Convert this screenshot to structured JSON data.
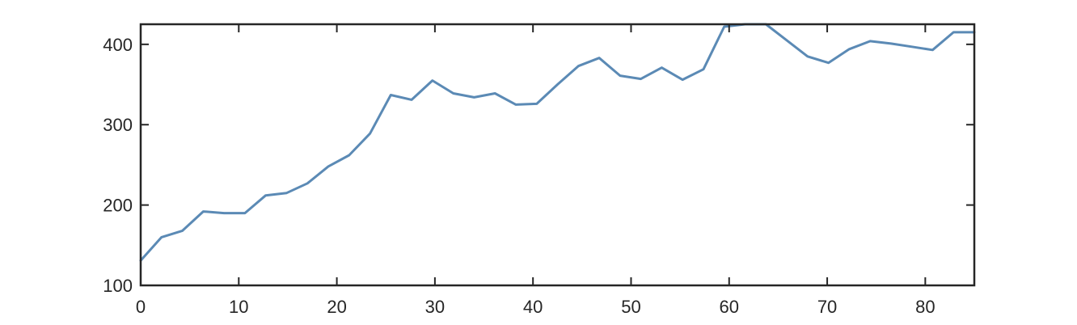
{
  "chart_data": {
    "type": "line",
    "title": "",
    "xlabel": "",
    "ylabel": "",
    "xlim": [
      0,
      85
    ],
    "ylim": [
      100,
      425
    ],
    "x_ticks": [
      0,
      10,
      20,
      30,
      40,
      50,
      60,
      70,
      80
    ],
    "y_ticks": [
      100,
      200,
      300,
      400
    ],
    "x_tick_labels": [
      "0",
      "10",
      "20",
      "30",
      "40",
      "50",
      "60",
      "70",
      "80"
    ],
    "y_tick_labels": [
      "100",
      "200",
      "300",
      "400"
    ],
    "grid": false,
    "box": true,
    "series": [
      {
        "color": "#5b8ab5",
        "x": [
          0,
          2.13,
          4.25,
          6.38,
          8.5,
          10.63,
          12.75,
          14.88,
          17,
          19.13,
          21.25,
          23.38,
          25.5,
          27.63,
          29.75,
          31.88,
          34,
          36.13,
          38.25,
          40.38,
          42.5,
          44.63,
          46.75,
          48.88,
          51,
          53.13,
          55.25,
          57.38,
          59.5,
          61.63,
          63.75,
          65.88,
          68,
          70.13,
          72.25,
          74.38,
          76.5,
          78.63,
          80.75,
          82.88,
          85
        ],
        "y": [
          131,
          160,
          168,
          192,
          190,
          190,
          212,
          215,
          227,
          248,
          262,
          289,
          337,
          331,
          355,
          339,
          334,
          339,
          325,
          326,
          350,
          373,
          383,
          361,
          357,
          371,
          356,
          369,
          422,
          425,
          425,
          405,
          385,
          377,
          394,
          404,
          401,
          397,
          393,
          415,
          415
        ]
      }
    ]
  }
}
